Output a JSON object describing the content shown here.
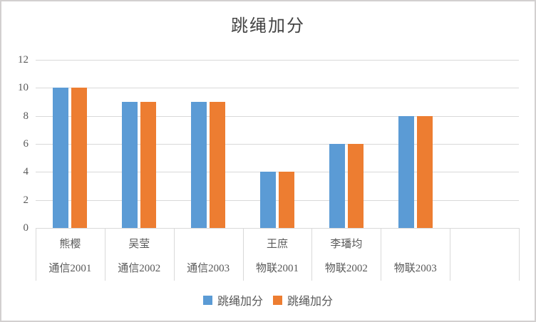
{
  "window": {
    "background": "#ffffff",
    "border_color": "#d2d0d0"
  },
  "chart_data": {
    "type": "bar",
    "title": "跳绳加分",
    "categories": [
      {
        "name": "熊樱",
        "group": "通信2001"
      },
      {
        "name": "吴莹",
        "group": "通信2002"
      },
      {
        "name": "",
        "group": "通信2003"
      },
      {
        "name": "王庶",
        "group": "物联2001"
      },
      {
        "name": "李璠均",
        "group": "物联2002"
      },
      {
        "name": "",
        "group": "物联2003"
      }
    ],
    "series": [
      {
        "name": "跳绳加分",
        "color": "#5B9BD5",
        "values": [
          10,
          9,
          9,
          4,
          6,
          8
        ]
      },
      {
        "name": "跳绳加分",
        "color": "#ED7D31",
        "values": [
          10,
          9,
          9,
          4,
          6,
          8
        ]
      }
    ],
    "xlabel": "",
    "ylabel": "",
    "ylim": [
      0,
      12
    ],
    "y_ticks": [
      0,
      2,
      4,
      6,
      8,
      10,
      12
    ],
    "grid": true,
    "legend_position": "bottom",
    "trailing_empty_categories": 1,
    "gridline_color": "#d9d9d9",
    "axis_text_color": "#595959",
    "title_color": "#444444"
  }
}
